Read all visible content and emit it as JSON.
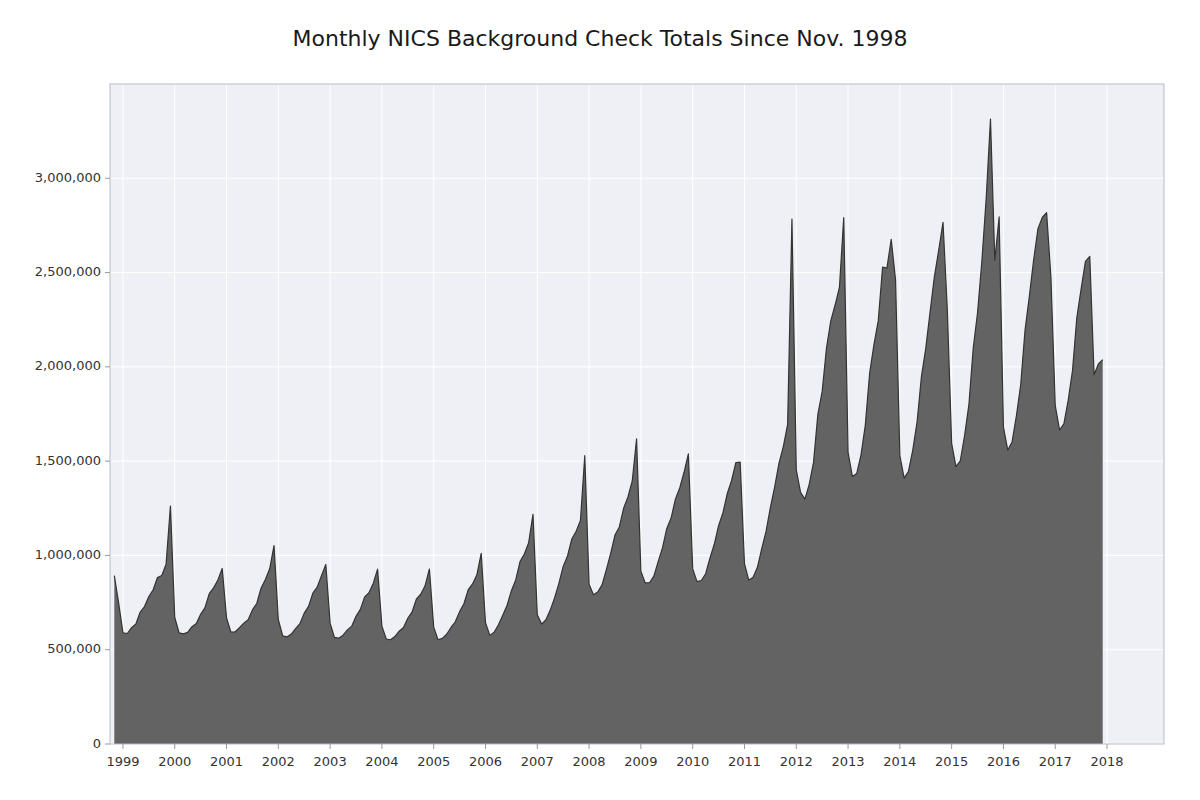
{
  "chart_data": {
    "type": "area",
    "title": "Monthly NICS Background Check Totals Since Nov. 1998",
    "color": "#636363",
    "grid": true,
    "xlim": [
      1998.75,
      2019.1
    ],
    "xticks": [
      1999,
      2000,
      2001,
      2002,
      2003,
      2004,
      2005,
      2006,
      2007,
      2008,
      2009,
      2010,
      2011,
      2012,
      2013,
      2014,
      2015,
      2016,
      2017,
      2018
    ],
    "ylim": [
      0,
      3500000
    ],
    "yticks": [
      0,
      {
        "value": 500000,
        "label": "500,000"
      },
      {
        "value": 1000000,
        "label": "1,000,000"
      },
      {
        "value": 1500000,
        "label": "1,500,000"
      },
      {
        "value": 2000000,
        "label": "2,000,000"
      },
      {
        "value": 2500000,
        "label": "2,500,000"
      },
      {
        "value": 3000000,
        "label": "3,000,000"
      }
    ],
    "x": [
      1998.833333333333,
      1998.916666666667,
      1999,
      1999.083333333333,
      1999.166666666667,
      1999.25,
      1999.333333333333,
      1999.416666666667,
      1999.5,
      1999.583333333333,
      1999.666666666667,
      1999.75,
      1999.833333333333,
      1999.916666666667,
      2000,
      2000.083333333333,
      2000.166666666667,
      2000.25,
      2000.333333333333,
      2000.416666666667,
      2000.5,
      2000.583333333333,
      2000.666666666667,
      2000.75,
      2000.833333333333,
      2000.916666666667,
      2001,
      2001.083333333333,
      2001.166666666667,
      2001.25,
      2001.333333333333,
      2001.416666666667,
      2001.5,
      2001.583333333333,
      2001.666666666667,
      2001.75,
      2001.833333333333,
      2001.916666666667,
      2002,
      2002.083333333333,
      2002.166666666667,
      2002.25,
      2002.333333333333,
      2002.416666666667,
      2002.5,
      2002.583333333333,
      2002.666666666667,
      2002.75,
      2002.833333333333,
      2002.916666666667,
      2003,
      2003.083333333333,
      2003.166666666667,
      2003.25,
      2003.333333333333,
      2003.416666666667,
      2003.5,
      2003.583333333333,
      2003.666666666667,
      2003.75,
      2003.833333333333,
      2003.916666666667,
      2004,
      2004.083333333333,
      2004.166666666667,
      2004.25,
      2004.333333333333,
      2004.416666666667,
      2004.5,
      2004.583333333333,
      2004.666666666667,
      2004.75,
      2004.833333333333,
      2004.916666666667,
      2005,
      2005.083333333333,
      2005.166666666667,
      2005.25,
      2005.333333333333,
      2005.416666666667,
      2005.5,
      2005.583333333333,
      2005.666666666667,
      2005.75,
      2005.833333333333,
      2005.916666666667,
      2006,
      2006.083333333333,
      2006.166666666667,
      2006.25,
      2006.333333333333,
      2006.416666666667,
      2006.5,
      2006.583333333333,
      2006.666666666667,
      2006.75,
      2006.833333333333,
      2006.916666666667,
      2007,
      2007.083333333333,
      2007.166666666667,
      2007.25,
      2007.333333333333,
      2007.416666666667,
      2007.5,
      2007.583333333333,
      2007.666666666667,
      2007.75,
      2007.833333333333,
      2007.916666666667,
      2008,
      2008.083333333333,
      2008.166666666667,
      2008.25,
      2008.333333333333,
      2008.416666666667,
      2008.5,
      2008.583333333333,
      2008.666666666667,
      2008.75,
      2008.833333333333,
      2008.916666666667,
      2009,
      2009.083333333333,
      2009.166666666667,
      2009.25,
      2009.333333333333,
      2009.416666666667,
      2009.5,
      2009.583333333333,
      2009.666666666667,
      2009.75,
      2009.833333333333,
      2009.916666666667,
      2010,
      2010.083333333333,
      2010.166666666667,
      2010.25,
      2010.333333333333,
      2010.416666666667,
      2010.5,
      2010.583333333333,
      2010.666666666667,
      2010.75,
      2010.833333333333,
      2010.916666666667,
      2011,
      2011.083333333333,
      2011.166666666667,
      2011.25,
      2011.333333333333,
      2011.416666666667,
      2011.5,
      2011.583333333333,
      2011.666666666667,
      2011.75,
      2011.833333333333,
      2011.916666666667,
      2012,
      2012.083333333333,
      2012.166666666667,
      2012.25,
      2012.333333333333,
      2012.416666666667,
      2012.5,
      2012.583333333333,
      2012.666666666667,
      2012.75,
      2012.833333333333,
      2012.916666666667,
      2013,
      2013.083333333333,
      2013.166666666667,
      2013.25,
      2013.333333333333,
      2013.416666666667,
      2013.5,
      2013.583333333333,
      2013.666666666667,
      2013.75,
      2013.833333333333,
      2013.916666666667,
      2014,
      2014.083333333333,
      2014.166666666667,
      2014.25,
      2014.333333333333,
      2014.416666666667,
      2014.5,
      2014.583333333333,
      2014.666666666667,
      2014.75,
      2014.833333333333,
      2014.916666666667,
      2015,
      2015.083333333333,
      2015.166666666667,
      2015.25,
      2015.333333333333,
      2015.416666666667,
      2015.5,
      2015.583333333333,
      2015.666666666667,
      2015.75,
      2015.833333333333,
      2015.916666666667,
      2016,
      2016.083333333333,
      2016.166666666667,
      2016.25,
      2016.333333333333,
      2016.416666666667,
      2016.5,
      2016.583333333333,
      2016.666666666667,
      2016.75,
      2016.833333333333,
      2016.916666666667,
      2017,
      2017.083333333333,
      2017.166666666667,
      2017.25,
      2017.333333333333,
      2017.416666666667,
      2017.5,
      2017.583333333333,
      2017.666666666667,
      2017.75,
      2017.833333333333,
      2017.916666666667
    ],
    "values": [
      893022,
      748678,
      590000,
      586000,
      617000,
      636000,
      700000,
      729000,
      782000,
      818000,
      883000,
      894000,
      954000,
      1262000,
      671000,
      590000,
      584000,
      592000,
      622000,
      639000,
      688000,
      723000,
      797000,
      828000,
      870000,
      931000,
      669000,
      594000,
      595000,
      617000,
      641000,
      659000,
      711000,
      745000,
      826000,
      872000,
      929000,
      1052000,
      659000,
      574000,
      568000,
      583000,
      612000,
      638000,
      694000,
      730000,
      800000,
      832000,
      893000,
      952000,
      641000,
      565000,
      561000,
      577000,
      605000,
      625000,
      677000,
      714000,
      780000,
      802000,
      853000,
      927000,
      625000,
      557000,
      553000,
      570000,
      598000,
      618000,
      667000,
      701000,
      769000,
      794000,
      839000,
      928000,
      620000,
      553000,
      560000,
      582000,
      618000,
      648000,
      702000,
      744000,
      819000,
      849000,
      897000,
      1011000,
      643000,
      576000,
      593000,
      632000,
      683000,
      736000,
      813000,
      870000,
      967000,
      1008000,
      1068000,
      1218000,
      685000,
      636000,
      659000,
      710000,
      775000,
      852000,
      942000,
      997000,
      1087000,
      1128000,
      1186000,
      1529000,
      847000,
      792000,
      806000,
      844000,
      924000,
      1011000,
      1108000,
      1151000,
      1250000,
      1310000,
      1395000,
      1618000,
      916000,
      854000,
      855000,
      890000,
      967000,
      1040000,
      1143000,
      1198000,
      1298000,
      1358000,
      1441000,
      1539000,
      930000,
      861000,
      867000,
      903000,
      986000,
      1059000,
      1158000,
      1225000,
      1327000,
      1396000,
      1492000,
      1495000,
      957000,
      869000,
      884000,
      937000,
      1036000,
      1127000,
      1254000,
      1364000,
      1490000,
      1577000,
      1695000,
      2783765,
      1453887,
      1333951,
      1298725,
      1376855,
      1493445,
      1748462,
      1868484,
      2099021,
      2243575,
      2327869,
      2421186,
      2791176,
      1546259,
      1419051,
      1434376,
      1533272,
      1691197,
      1966339,
      2118360,
      2245001,
      2529355,
      2523265,
      2676673,
      2462040,
      1530000,
      1410000,
      1446000,
      1560000,
      1710000,
      1948000,
      2098000,
      2290000,
      2479000,
      2618000,
      2766000,
      2302000,
      1594000,
      1471000,
      1502000,
      1636000,
      1800000,
      2100000,
      2287000,
      2560000,
      2893000,
      3314000,
      2565000,
      2795000,
      1680000,
      1559000,
      1602000,
      1740000,
      1905000,
      2194000,
      2374000,
      2567000,
      2733000,
      2792000,
      2818000,
      2475000,
      1796000,
      1665000,
      1698000,
      1822000,
      1980000,
      2260000,
      2414000,
      2559000,
      2586000,
      1958000,
      2015000,
      2038000
    ]
  }
}
